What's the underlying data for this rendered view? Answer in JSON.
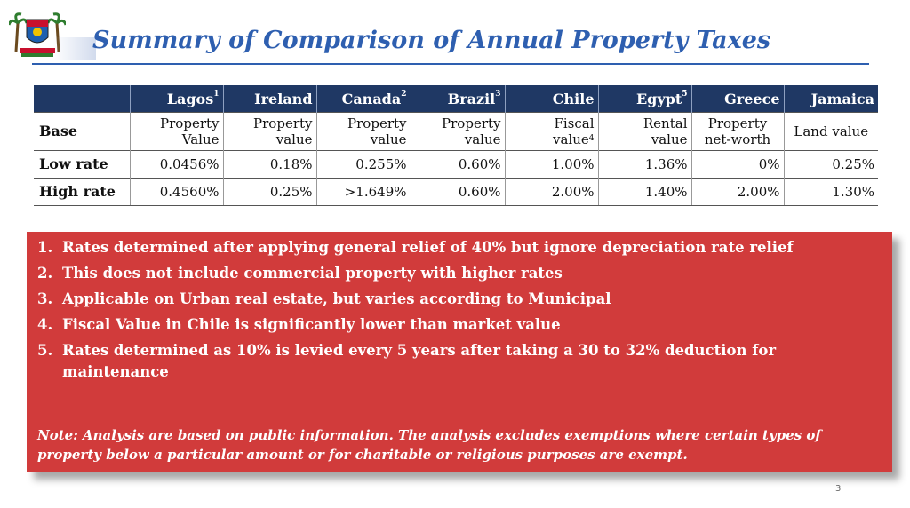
{
  "slide": {
    "title": "Summary of Comparison of Annual Property Taxes",
    "page_number": "3",
    "logo": "lagos-state-crest"
  },
  "table": {
    "columns": [
      {
        "name": "Lagos",
        "note": "1"
      },
      {
        "name": "Ireland",
        "note": ""
      },
      {
        "name": "Canada",
        "note": "2"
      },
      {
        "name": "Brazil",
        "note": "3"
      },
      {
        "name": "Chile",
        "note": ""
      },
      {
        "name": "Egypt",
        "note": "5"
      },
      {
        "name": "Greece",
        "note": ""
      },
      {
        "name": "Jamaica",
        "note": ""
      }
    ],
    "base": {
      "label": "Base",
      "values": [
        {
          "line1": "Property",
          "line2": "Value",
          "note": ""
        },
        {
          "line1": "Property",
          "line2": "value",
          "note": ""
        },
        {
          "line1": "Property",
          "line2": "value",
          "note": ""
        },
        {
          "line1": "Property",
          "line2": "value",
          "note": ""
        },
        {
          "line1": "Fiscal",
          "line2": "value",
          "note": "4"
        },
        {
          "line1": "Rental",
          "line2": "value",
          "note": ""
        },
        {
          "line1": "Property",
          "line2": "net-worth",
          "note": ""
        },
        {
          "line1": "Land value",
          "line2": "",
          "note": ""
        }
      ]
    },
    "low_rate": {
      "label": "Low rate",
      "values": [
        "0.0456%",
        "0.18%",
        "0.255%",
        "0.60%",
        "1.00%",
        "1.36%",
        "0%",
        "0.25%"
      ]
    },
    "high_rate": {
      "label": "High rate",
      "values": [
        "0.4560%",
        "0.25%",
        ">1.649%",
        "0.60%",
        "2.00%",
        "1.40%",
        "2.00%",
        "1.30%"
      ]
    }
  },
  "notes": {
    "items": [
      {
        "num": "1.",
        "text": "Rates determined after applying general relief of 40% but ignore depreciation rate relief"
      },
      {
        "num": "2.",
        "text": "This does not include commercial property with higher rates"
      },
      {
        "num": "3.",
        "text": "Applicable on Urban real estate, but varies according to Municipal"
      },
      {
        "num": "4.",
        "text": "Fiscal Value in Chile is significantly lower than market value"
      },
      {
        "num": "5.",
        "text": "Rates determined as 10% is levied every 5 years after taking a 30 to 32% deduction for maintenance"
      }
    ],
    "disclaimer": "Note: Analysis are based on public information. The analysis excludes exemptions where certain types of property below a particular amount or for charitable or religious purposes are exempt."
  },
  "colors": {
    "title": "#2e5fb0",
    "table_header": "#1f3864",
    "notes_box": "#d13b3b"
  }
}
